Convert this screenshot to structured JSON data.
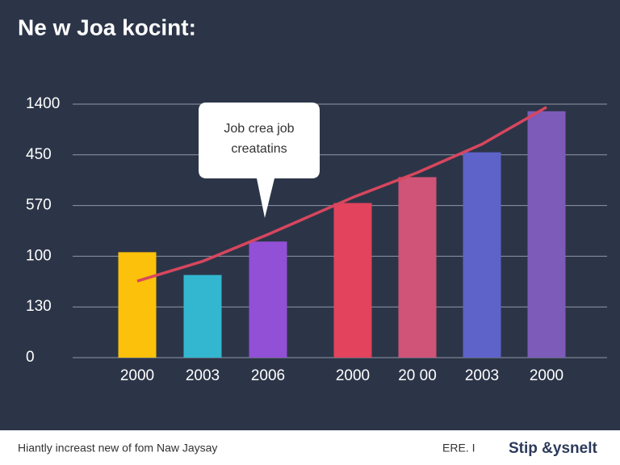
{
  "chart_data": {
    "type": "bar",
    "title": "Ne w Joa kocint:",
    "annotation": [
      "Job crea job",
      "creatatins"
    ],
    "categories": [
      "2000",
      "2003",
      "2006",
      "2000",
      "20 00",
      "2003",
      "2000"
    ],
    "series": [
      {
        "type": "bar",
        "colors": [
          "#fcc10a",
          "#33b7d0",
          "#9150d5",
          "#e3435c",
          "#cf5477",
          "#5e63c9",
          "#7d5bb8"
        ],
        "values": [
          2.08,
          1.63,
          2.29,
          3.05,
          3.56,
          4.05,
          4.86
        ]
      },
      {
        "type": "line",
        "color": "#d8465e",
        "values": [
          1.51,
          1.9,
          2.43,
          3.16,
          3.65,
          4.21,
          4.94
        ]
      }
    ],
    "ylim": [
      0,
      5
    ],
    "yticks": [
      {
        "value": 0,
        "label": "0"
      },
      {
        "value": 1,
        "label": "130"
      },
      {
        "value": 2,
        "label": "100"
      },
      {
        "value": 3,
        "label": "570"
      },
      {
        "value": 4,
        "label": "450"
      },
      {
        "value": 5,
        "label": "1400"
      }
    ],
    "grid": true,
    "footer": {
      "left": "Hiantly increast new of fom Naw Jaysay",
      "middle": "ERE. I",
      "right": "Stip &ysnelt"
    }
  }
}
